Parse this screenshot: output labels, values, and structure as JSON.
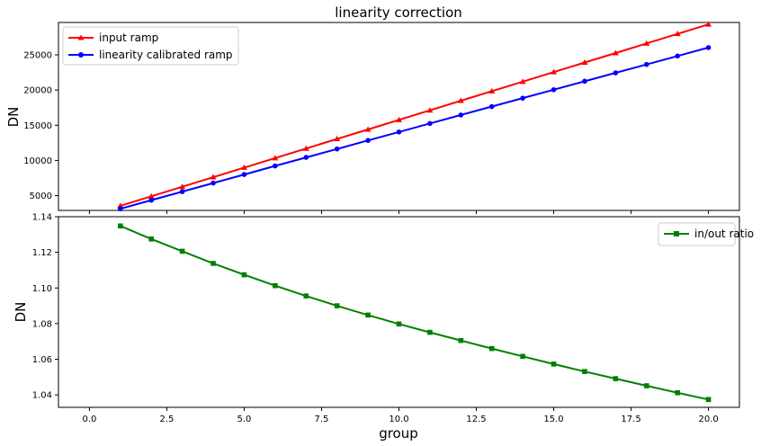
{
  "chart_data": [
    {
      "type": "line",
      "title": "linearity correction",
      "xlabel": "",
      "ylabel": "DN",
      "xlim": [
        -1,
        21
      ],
      "ylim": [
        2900,
        29600
      ],
      "yticks": [
        5000,
        10000,
        15000,
        20000,
        25000
      ],
      "ytick_labels": [
        "5000",
        "10000",
        "15000",
        "20000",
        "25000"
      ],
      "legend": "top-left",
      "x": [
        1,
        2,
        3,
        4,
        5,
        6,
        7,
        8,
        9,
        10,
        11,
        12,
        13,
        14,
        15,
        16,
        17,
        18,
        19,
        20
      ],
      "series": [
        {
          "name": "input ramp",
          "color": "#ff0000",
          "marker": "triangle",
          "values": [
            3550,
            4900,
            6260,
            7620,
            8980,
            10330,
            11690,
            13050,
            14400,
            15760,
            17120,
            18480,
            19840,
            21190,
            22550,
            23910,
            25260,
            26620,
            27980,
            29330
          ]
        },
        {
          "name": "linearity calibrated ramp",
          "color": "#0000ff",
          "marker": "circle",
          "values": [
            3125,
            4350,
            5570,
            6790,
            8000,
            9220,
            10430,
            11630,
            12840,
            14040,
            15250,
            16450,
            17650,
            18850,
            20050,
            21250,
            22440,
            23640,
            24840,
            26030
          ]
        }
      ]
    },
    {
      "type": "line",
      "title": "",
      "xlabel": "group",
      "ylabel": "DN",
      "xlim": [
        -1,
        21
      ],
      "ylim": [
        1.033,
        1.14
      ],
      "xticks": [
        0,
        2.5,
        5,
        7.5,
        10,
        12.5,
        15,
        17.5,
        20
      ],
      "xtick_labels": [
        "0.0",
        "2.5",
        "5.0",
        "7.5",
        "10.0",
        "12.5",
        "15.0",
        "17.5",
        "20.0"
      ],
      "yticks": [
        1.04,
        1.06,
        1.08,
        1.1,
        1.12,
        1.14
      ],
      "ytick_labels": [
        "1.04",
        "1.06",
        "1.08",
        "1.10",
        "1.12",
        "1.14"
      ],
      "legend": "top-right",
      "x": [
        1,
        2,
        3,
        4,
        5,
        6,
        7,
        8,
        9,
        10,
        11,
        12,
        13,
        14,
        15,
        16,
        17,
        18,
        19,
        20
      ],
      "series": [
        {
          "name": "in/out ratio",
          "color": "#008000",
          "marker": "square",
          "values": [
            1.1348,
            1.1275,
            1.1206,
            1.1138,
            1.1074,
            1.1013,
            1.0955,
            1.09,
            1.0848,
            1.0798,
            1.0751,
            1.0705,
            1.066,
            1.0616,
            1.0573,
            1.0531,
            1.0491,
            1.0451,
            1.0412,
            1.0374
          ]
        }
      ]
    }
  ]
}
